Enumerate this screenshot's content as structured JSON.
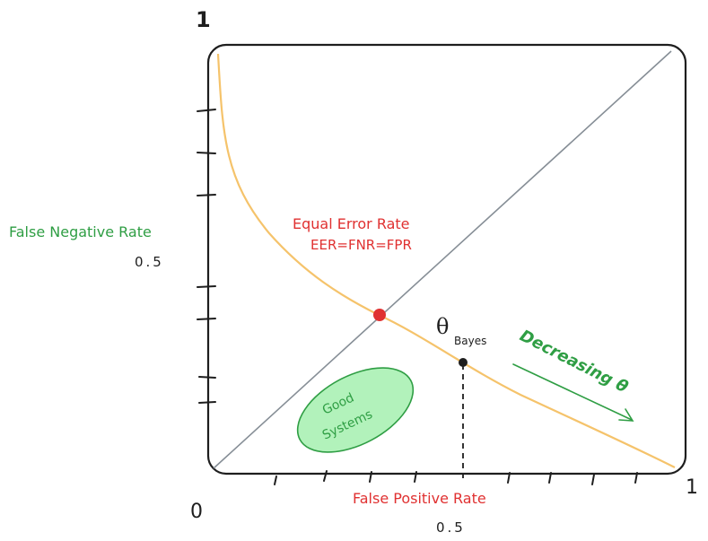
{
  "axis": {
    "x_label": "False Positive Rate",
    "y_label": "False Negative Rate",
    "origin": "0",
    "x_max": "1",
    "y_max": "1",
    "x_half": "0.5",
    "y_half": "0.5"
  },
  "annotations": {
    "eer_title": "Equal Error Rate",
    "eer_formula": "EER=FNR=FPR",
    "theta_symbol": "θ",
    "theta_subscript": "Bayes",
    "decreasing": "Decreasing θ",
    "good_systems_line1": "Good",
    "good_systems_line2": "Systems"
  },
  "colors": {
    "curve": "#f5c36b",
    "eer_point": "#e03131",
    "green": "#2f9e44",
    "red_text": "#e03131",
    "ellipse_fill": "#b2f2bb",
    "diagonal": "#868e96"
  }
}
